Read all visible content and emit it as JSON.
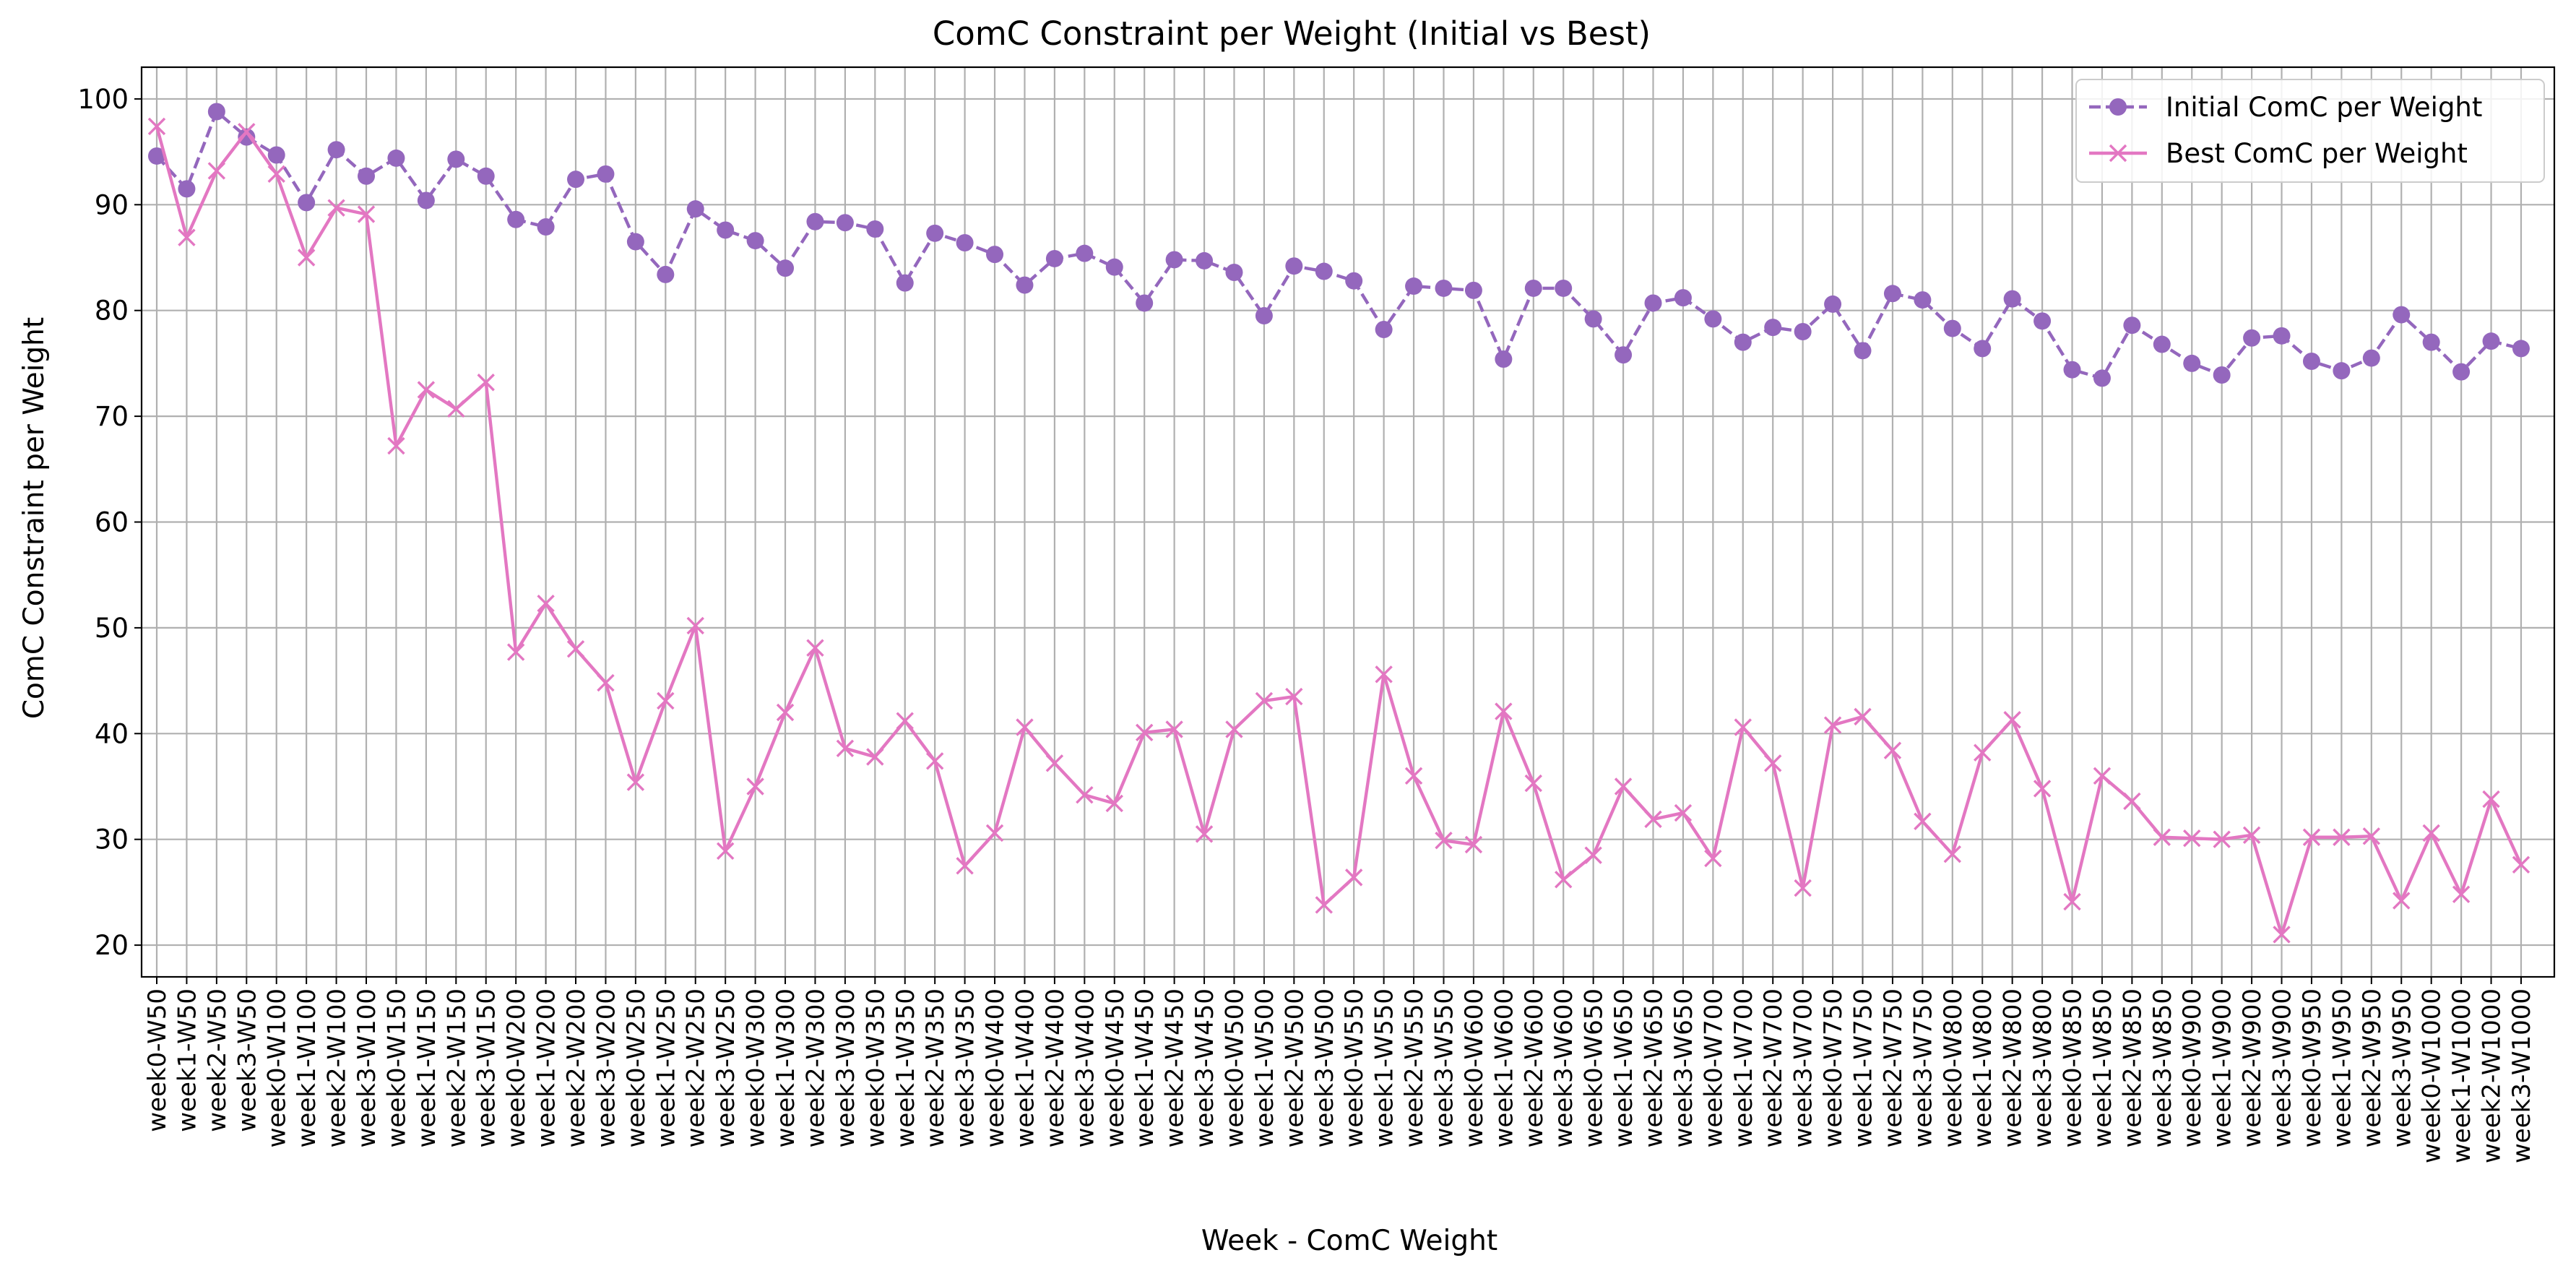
{
  "chart_data": {
    "type": "line",
    "title": "ComC Constraint per Weight (Initial vs Best)",
    "xlabel": "Week - ComC Weight",
    "ylabel": "ComC Constraint per Weight",
    "ylim": [
      17,
      103
    ],
    "yticks": [
      20,
      30,
      40,
      50,
      60,
      70,
      80,
      90,
      100
    ],
    "grid": true,
    "legend_position": "upper right",
    "categories": [
      "week0-W50",
      "week1-W50",
      "week2-W50",
      "week3-W50",
      "week0-W100",
      "week1-W100",
      "week2-W100",
      "week3-W100",
      "week0-W150",
      "week1-W150",
      "week2-W150",
      "week3-W150",
      "week0-W200",
      "week1-W200",
      "week2-W200",
      "week3-W200",
      "week0-W250",
      "week1-W250",
      "week2-W250",
      "week3-W250",
      "week0-W300",
      "week1-W300",
      "week2-W300",
      "week3-W300",
      "week0-W350",
      "week1-W350",
      "week2-W350",
      "week3-W350",
      "week0-W400",
      "week1-W400",
      "week2-W400",
      "week3-W400",
      "week0-W450",
      "week1-W450",
      "week2-W450",
      "week3-W450",
      "week0-W500",
      "week1-W500",
      "week2-W500",
      "week3-W500",
      "week0-W550",
      "week1-W550",
      "week2-W550",
      "week3-W550",
      "week0-W600",
      "week1-W600",
      "week2-W600",
      "week3-W600",
      "week0-W650",
      "week1-W650",
      "week2-W650",
      "week3-W650",
      "week0-W700",
      "week1-W700",
      "week2-W700",
      "week3-W700",
      "week0-W750",
      "week1-W750",
      "week2-W750",
      "week3-W750",
      "week0-W800",
      "week1-W800",
      "week2-W800",
      "week3-W800",
      "week0-W850",
      "week1-W850",
      "week2-W850",
      "week3-W850",
      "week0-W900",
      "week1-W900",
      "week2-W900",
      "week3-W900",
      "week0-W950",
      "week1-W950",
      "week2-W950",
      "week3-W950",
      "week0-W1000",
      "week1-W1000",
      "week2-W1000",
      "week3-W1000"
    ],
    "series": [
      {
        "name": "Initial ComC per Weight",
        "color": "#9467bd",
        "line_style": "dashed",
        "marker": "circle",
        "values": [
          94.6,
          91.5,
          98.8,
          96.4,
          94.7,
          90.2,
          95.2,
          92.7,
          94.4,
          90.4,
          94.3,
          92.7,
          88.6,
          87.9,
          92.4,
          92.9,
          86.5,
          83.4,
          89.6,
          87.6,
          86.6,
          84.0,
          88.4,
          88.3,
          87.7,
          82.6,
          87.3,
          86.4,
          85.3,
          82.4,
          84.9,
          85.4,
          84.1,
          80.7,
          84.8,
          84.7,
          83.6,
          79.5,
          84.2,
          83.7,
          82.8,
          78.2,
          82.3,
          82.1,
          81.9,
          75.4,
          82.1,
          82.1,
          79.2,
          75.8,
          80.7,
          81.2,
          79.2,
          77.0,
          78.4,
          78.0,
          80.6,
          76.2,
          81.6,
          81.0,
          78.3,
          76.4,
          81.1,
          79.0,
          74.4,
          73.6,
          78.6,
          76.8,
          75.0,
          73.9,
          77.4,
          77.6,
          75.2,
          74.3,
          75.5,
          79.6,
          77.0,
          74.2,
          77.1,
          76.4
        ]
      },
      {
        "name": "Best ComC per Weight",
        "color": "#e377c2",
        "line_style": "solid",
        "marker": "x",
        "values": [
          97.4,
          86.9,
          93.2,
          96.9,
          92.9,
          85.0,
          89.7,
          89.1,
          67.2,
          72.5,
          70.7,
          73.2,
          47.7,
          52.3,
          48.0,
          44.8,
          35.4,
          43.1,
          50.2,
          28.9,
          35.0,
          42.0,
          48.1,
          38.6,
          37.8,
          41.2,
          37.4,
          27.5,
          30.6,
          40.6,
          37.2,
          34.2,
          33.4,
          40.1,
          40.4,
          30.5,
          40.4,
          43.1,
          43.5,
          23.8,
          26.4,
          45.6,
          36.0,
          29.9,
          29.5,
          42.1,
          35.3,
          26.2,
          28.5,
          35.0,
          31.9,
          32.5,
          28.2,
          40.6,
          37.2,
          25.4,
          40.8,
          41.6,
          38.4,
          31.7,
          28.6,
          38.2,
          41.3,
          34.8,
          24.1,
          36.0,
          33.6,
          30.2,
          30.1,
          30.0,
          30.4,
          21.0,
          30.2,
          30.2,
          30.3,
          24.2,
          30.6,
          24.8,
          33.8,
          27.6
        ]
      }
    ]
  }
}
